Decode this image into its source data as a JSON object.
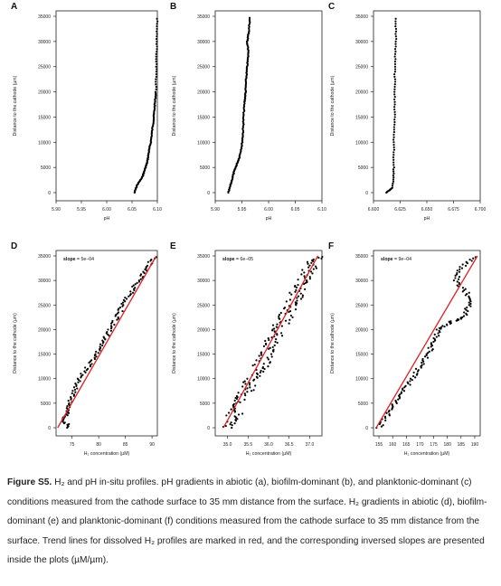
{
  "panels": [
    {
      "letter": "A",
      "type": "scatter",
      "xlabel": "pH",
      "ylabel": "Distance to the cathode (µm)",
      "xlim": [
        5.9,
        6.1
      ],
      "xticks": [
        "5.90",
        "5.95",
        "6.00",
        "6.05",
        "6.10"
      ],
      "ylim": [
        0,
        35000
      ],
      "yticks": [
        "0",
        "5000",
        "10000",
        "15000",
        "20000",
        "25000",
        "30000",
        "35000"
      ],
      "profile": [
        [
          6.055,
          0
        ],
        [
          6.06,
          1500
        ],
        [
          6.07,
          3000
        ],
        [
          6.075,
          4500
        ],
        [
          6.08,
          6000
        ],
        [
          6.083,
          8000
        ],
        [
          6.087,
          10000
        ],
        [
          6.09,
          12500
        ],
        [
          6.093,
          15000
        ],
        [
          6.095,
          17500
        ],
        [
          6.097,
          20000
        ],
        [
          6.098,
          25000
        ],
        [
          6.099,
          30000
        ],
        [
          6.1,
          35000
        ]
      ]
    },
    {
      "letter": "B",
      "type": "scatter",
      "xlabel": "pH",
      "ylabel": "Distance to the cathode (µm)",
      "xlim": [
        5.9,
        6.1
      ],
      "xticks": [
        "5.90",
        "5.95",
        "6.00",
        "6.05",
        "6.10"
      ],
      "ylim": [
        0,
        35000
      ],
      "yticks": [
        "0",
        "5000",
        "10000",
        "15000",
        "20000",
        "25000",
        "30000",
        "35000"
      ],
      "profile": [
        [
          5.925,
          0
        ],
        [
          5.93,
          2000
        ],
        [
          5.935,
          4000
        ],
        [
          5.94,
          5500
        ],
        [
          5.945,
          7000
        ],
        [
          5.95,
          9500
        ],
        [
          5.952,
          12000
        ],
        [
          5.953,
          15000
        ],
        [
          5.955,
          18000
        ],
        [
          5.957,
          20000
        ],
        [
          5.958,
          22500
        ],
        [
          5.96,
          25000
        ],
        [
          5.962,
          27500
        ],
        [
          5.96,
          30000
        ],
        [
          5.963,
          32000
        ],
        [
          5.965,
          35000
        ]
      ]
    },
    {
      "letter": "C",
      "type": "scatter",
      "xlabel": "pH",
      "ylabel": "Distance to the cathode (µm)",
      "xlim": [
        6.6,
        6.7
      ],
      "xticks": [
        "6.600",
        "6.625",
        "6.650",
        "6.675",
        "6.700"
      ],
      "ylim": [
        0,
        35000
      ],
      "yticks": [
        "0",
        "5000",
        "10000",
        "15000",
        "20000",
        "25000",
        "30000",
        "35000"
      ],
      "profile": [
        [
          6.612,
          0
        ],
        [
          6.618,
          1000
        ],
        [
          6.619,
          5000
        ],
        [
          6.619,
          10000
        ],
        [
          6.62,
          15000
        ],
        [
          6.62,
          20000
        ],
        [
          6.62,
          25000
        ],
        [
          6.621,
          30000
        ],
        [
          6.621,
          35000
        ]
      ]
    },
    {
      "letter": "D",
      "type": "scatter",
      "xlabel": "H₂ concentration (µM)",
      "ylabel": "Distance to the cathode (µm)",
      "xlim": [
        72,
        91
      ],
      "xticks": [
        "75",
        "80",
        "85",
        "90"
      ],
      "xtickvals": [
        75,
        80,
        85,
        90
      ],
      "ylim": [
        0,
        35000
      ],
      "yticks": [
        "0",
        "5000",
        "10000",
        "15000",
        "20000",
        "25000",
        "30000",
        "35000"
      ],
      "slope": "slope = 5e−04",
      "trend": [
        [
          72.3,
          0
        ],
        [
          90.8,
          35000
        ]
      ],
      "profile": [
        [
          74.5,
          0
        ],
        [
          73.5,
          1500
        ],
        [
          74,
          3000
        ],
        [
          74.5,
          5000
        ],
        [
          75.5,
          7500
        ],
        [
          76.5,
          10000
        ],
        [
          78,
          12500
        ],
        [
          79.5,
          15000
        ],
        [
          81,
          17500
        ],
        [
          82,
          20000
        ],
        [
          83.5,
          22500
        ],
        [
          84.5,
          25000
        ],
        [
          86,
          27500
        ],
        [
          87.5,
          30000
        ],
        [
          89,
          32500
        ],
        [
          90.5,
          35000
        ]
      ]
    },
    {
      "letter": "E",
      "type": "scatter",
      "xlabel": "H₂ concentration (µM)",
      "ylabel": "Distance to the cathode (µm)",
      "xlim": [
        34.7,
        37.3
      ],
      "xticks": [
        "35.0",
        "35.5",
        "36.0",
        "36.5",
        "37.0"
      ],
      "xtickvals": [
        35.0,
        35.5,
        36.0,
        36.5,
        37.0
      ],
      "ylim": [
        0,
        35000
      ],
      "yticks": [
        "0",
        "5000",
        "10000",
        "15000",
        "20000",
        "25000",
        "30000",
        "35000"
      ],
      "slope": "slope = 6e−05",
      "trend": [
        [
          34.9,
          0
        ],
        [
          37.2,
          35000
        ]
      ],
      "profile": [
        [
          35.0,
          0
        ],
        [
          35.15,
          2500
        ],
        [
          35.3,
          5000
        ],
        [
          35.45,
          7500
        ],
        [
          35.6,
          10000
        ],
        [
          35.8,
          12500
        ],
        [
          35.95,
          15000
        ],
        [
          36.1,
          17500
        ],
        [
          36.25,
          20000
        ],
        [
          36.4,
          22500
        ],
        [
          36.55,
          25000
        ],
        [
          36.7,
          27500
        ],
        [
          36.85,
          30000
        ],
        [
          37.0,
          32500
        ],
        [
          37.15,
          35000
        ]
      ]
    },
    {
      "letter": "F",
      "type": "scatter",
      "xlabel": "H₂ concentration (µM)",
      "ylabel": "Distance to the cathode (µm)",
      "xlim": [
        153,
        192
      ],
      "xticks": [
        "155",
        "160",
        "165",
        "170",
        "175",
        "180",
        "185",
        "190"
      ],
      "xtickvals": [
        155,
        160,
        165,
        170,
        175,
        180,
        185,
        190
      ],
      "ylim": [
        0,
        35000
      ],
      "yticks": [
        "0",
        "5000",
        "10000",
        "15000",
        "20000",
        "25000",
        "30000",
        "35000"
      ],
      "slope": "slope = 9e−04",
      "trend": [
        [
          154,
          0
        ],
        [
          191,
          35000
        ]
      ],
      "profile": [
        [
          155,
          0
        ],
        [
          158,
          2500
        ],
        [
          161,
          5000
        ],
        [
          164,
          7500
        ],
        [
          167,
          10000
        ],
        [
          170,
          12500
        ],
        [
          173,
          15000
        ],
        [
          175,
          17500
        ],
        [
          177,
          20000
        ],
        [
          181,
          21500
        ],
        [
          186,
          22500
        ],
        [
          188,
          25000
        ],
        [
          187,
          27500
        ],
        [
          183,
          30000
        ],
        [
          185,
          32500
        ],
        [
          190,
          35000
        ]
      ]
    }
  ],
  "caption": {
    "label": "Figure S5.",
    "text": " H₂ and pH in-situ profiles. pH gradients in abiotic (a), biofilm-dominant (b), and planktonic-dominant (c) conditions measured from the cathode surface to 35 mm distance from the surface. H₂ gradients in abiotic (d), biofilm-dominant (e) and planktonic-dominant (f) conditions measured from the cathode surface to 35 mm distance from the surface. Trend lines for dissolved H₂ profiles are marked in red, and the corresponding inversed slopes are presented inside the plots (µM/µm)."
  }
}
